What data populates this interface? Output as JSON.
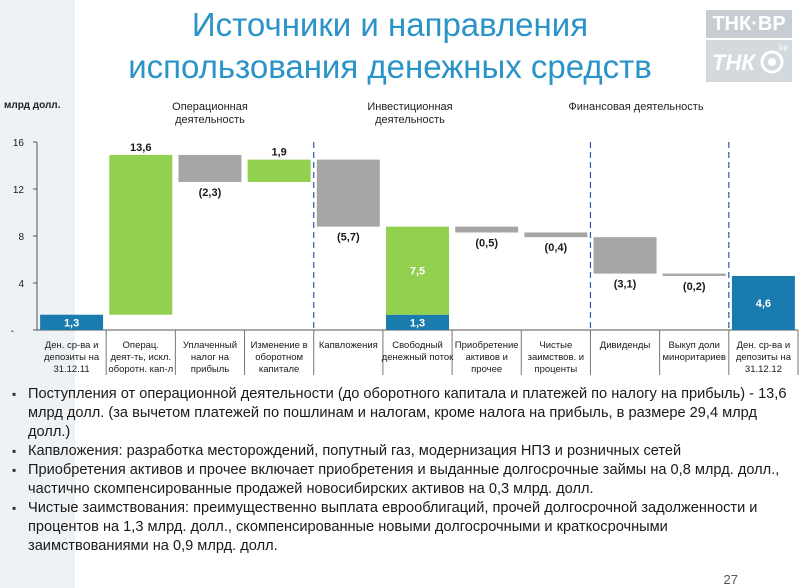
{
  "title_line1": "Источники и направления",
  "title_line2": "использования денежных средств",
  "logo": {
    "top_text": "ТНК·ВР",
    "mark_text": "ТНК",
    "bp_text": "bp"
  },
  "unit_label": "млрд долл.",
  "sections": {
    "operational": "Операционная деятельность",
    "investment": "Инвестиционная деятельность",
    "financial": "Финансовая деятельность"
  },
  "colors": {
    "blue": "#1a7cae",
    "green": "#92d050",
    "gray": "#a6a6a6",
    "divider": "#2a5aa8",
    "title": "#2a93c8"
  },
  "chart_data": {
    "type": "waterfall",
    "ylim": [
      0,
      16
    ],
    "yticks": [
      "16",
      "12",
      "8",
      "4",
      "-"
    ],
    "bars": [
      {
        "category": "Ден. ср-ва и депозиты на 31.12.11",
        "label": "1,3",
        "base": 0,
        "value": 1.3,
        "color": "blue",
        "label_pos": "inside"
      },
      {
        "category": "Операц. деят-ть, искл. оборотн. кап-л",
        "label": "13,6",
        "base": 1.3,
        "value": 13.6,
        "color": "green",
        "label_pos": "above"
      },
      {
        "category": "Уплаченный налог на прибыль",
        "label": "(2,3)",
        "base": 12.6,
        "value": 2.3,
        "color": "gray",
        "label_pos": "below"
      },
      {
        "category": "Изменение в оборотном капитале",
        "label": "1,9",
        "base": 12.6,
        "value": 1.9,
        "color": "green",
        "label_pos": "above"
      },
      {
        "category": "Капвложения",
        "label": "(5,7)",
        "base": 8.8,
        "value": 5.7,
        "color": "gray",
        "label_pos": "below"
      },
      {
        "category": "Свободный денежный поток",
        "label": "7,5",
        "base": 1.3,
        "value": 7.5,
        "color": "green",
        "label_pos": "inside",
        "extra": {
          "label": "1,3",
          "base": 0,
          "value": 1.3,
          "color": "blue"
        }
      },
      {
        "category": "Приобретение активов и прочее",
        "label": "(0,5)",
        "base": 8.3,
        "value": 0.5,
        "color": "gray",
        "label_pos": "below"
      },
      {
        "category": "Чистые заимствов. и проценты",
        "label": "(0,4)",
        "base": 7.9,
        "value": 0.4,
        "color": "gray",
        "label_pos": "below"
      },
      {
        "category": "Дивиденды",
        "label": "(3,1)",
        "base": 4.8,
        "value": 3.1,
        "color": "gray",
        "label_pos": "below"
      },
      {
        "category": "Выкуп доли миноритариев",
        "label": "(0,2)",
        "base": 4.6,
        "value": 0.2,
        "color": "gray",
        "label_pos": "below"
      },
      {
        "category": "Ден. ср-ва и депозиты на 31.12.12",
        "label": "4,6",
        "base": 0,
        "value": 4.6,
        "color": "blue",
        "label_pos": "inside"
      }
    ]
  },
  "notes": [
    "Поступления от операционной деятельности (до оборотного капитала и платежей по налогу на прибыль)  - 13,6 млрд долл. (за вычетом платежей по пошлинам и налогам, кроме налога на прибыль, в размере 29,4 млрд долл.)",
    "Капвложения: разработка месторождений, попутный газ, модернизация НПЗ и розничных сетей",
    "Приобретения активов и прочее включает приобретения и выданные долгосрочные займы на 0,8 млрд. долл., частично скомпенсированные продажей новосибирских активов на 0,3 млрд. долл.",
    "Чистые заимствования: преимущественно выплата еврооблигаций, прочей долгосрочной задолженности и процентов на 1,3 млрд. долл.,  скомпенсированные новыми долгосрочными и краткосрочными заимствованиями на 0,9 млрд. долл."
  ],
  "page_number": "27"
}
